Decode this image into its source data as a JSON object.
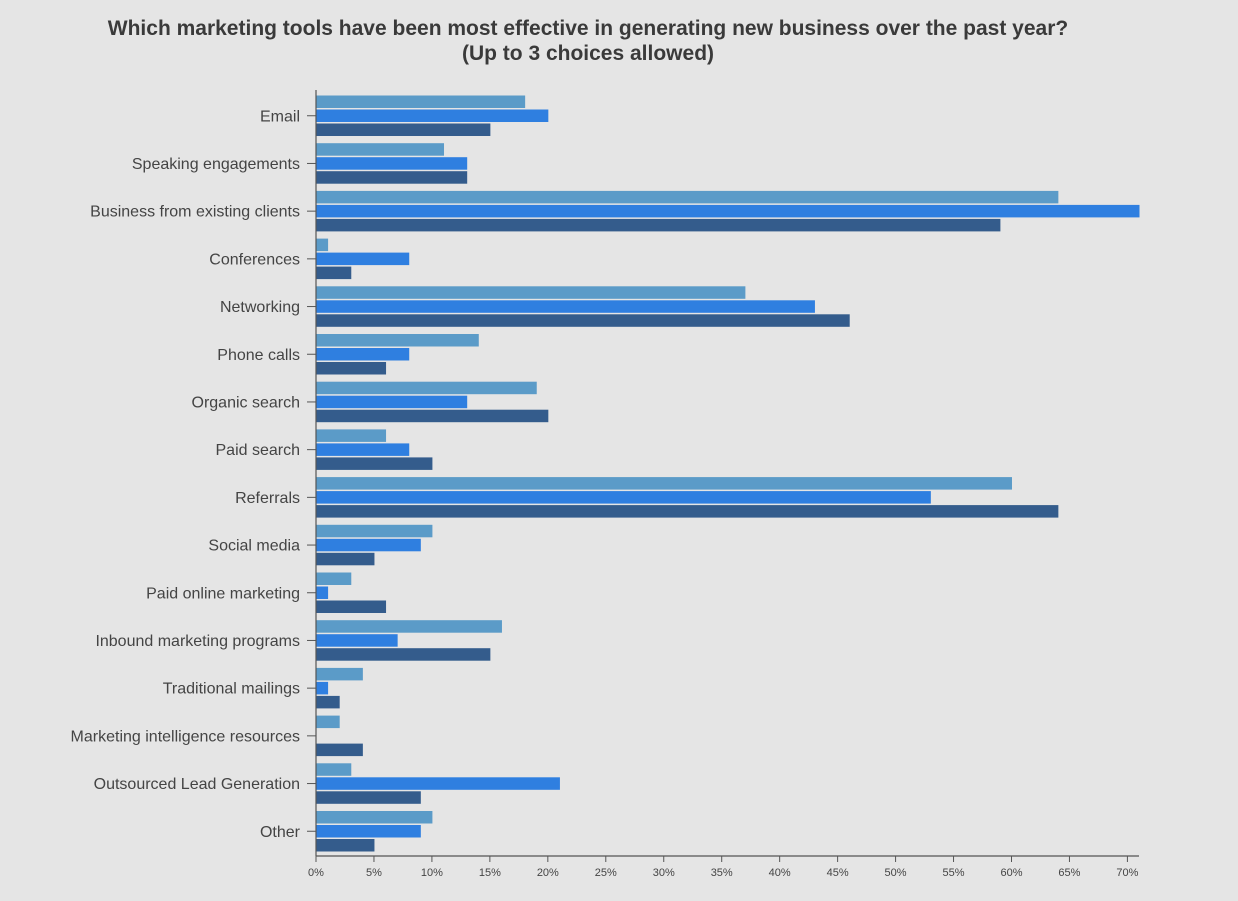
{
  "chart_data": {
    "type": "bar",
    "orientation": "horizontal",
    "title": "Which marketing tools have been most effective in generating new business over the past year?",
    "subtitle": "(Up to 3 choices allowed)",
    "categories": [
      "Email",
      "Speaking engagements",
      "Business from existing clients",
      "Conferences",
      "Networking",
      "Phone calls",
      "Organic search",
      "Paid search",
      "Referrals",
      "Social media",
      "Paid online marketing",
      "Inbound marketing programs",
      "Traditional mailings",
      "Marketing intelligence resources",
      "Outsourced Lead Generation",
      "Other"
    ],
    "series": [
      {
        "values": [
          18,
          11,
          64,
          1,
          37,
          14,
          19,
          6,
          60,
          10,
          3,
          16,
          4,
          2,
          3,
          10
        ],
        "color": "#5b9bc8"
      },
      {
        "values": [
          20,
          13,
          71,
          8,
          43,
          8,
          13,
          8,
          53,
          9,
          1,
          7,
          1,
          0,
          21,
          9
        ],
        "color": "#2f7fe0"
      },
      {
        "values": [
          15,
          13,
          59,
          3,
          46,
          6,
          20,
          10,
          64,
          5,
          6,
          15,
          2,
          4,
          9,
          5
        ],
        "color": "#345c8c"
      }
    ],
    "xlim": [
      0,
      71
    ],
    "xticks": [
      "0%",
      "5%",
      "10%",
      "15%",
      "20%",
      "25%",
      "30%",
      "35%",
      "40%",
      "45%",
      "50%",
      "55%",
      "60%",
      "65%",
      "70%"
    ],
    "grid": false,
    "legend": "none"
  }
}
